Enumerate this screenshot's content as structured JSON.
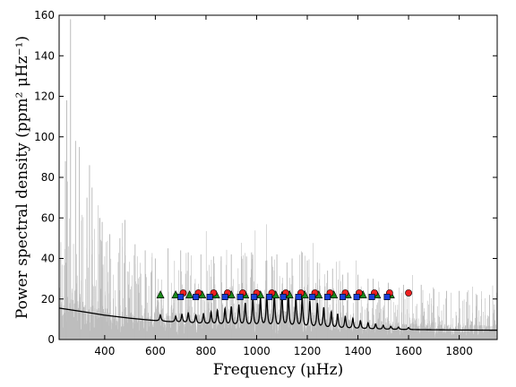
{
  "chart_data": {
    "type": "line",
    "xlabel": "Frequency (μHz)",
    "ylabel": "Power spectral density (ppm² μHz⁻¹)",
    "xlim": [
      220,
      1950
    ],
    "ylim": [
      0,
      160
    ],
    "xticks": [
      400,
      600,
      800,
      1000,
      1200,
      1400,
      1600,
      1800
    ],
    "yticks": [
      0,
      20,
      40,
      60,
      80,
      100,
      120,
      140,
      160
    ],
    "grid": false,
    "series": [
      {
        "kind": "spectrum",
        "color": "#bdbdbd",
        "peaks": [
          [
            265,
            158
          ],
          [
            250,
            118
          ],
          [
            285,
            98
          ],
          [
            300,
            95
          ],
          [
            245,
            88
          ],
          [
            340,
            86
          ],
          [
            350,
            75
          ],
          [
            330,
            70
          ],
          [
            380,
            60
          ],
          [
            390,
            58
          ],
          [
            480,
            59
          ],
          [
            420,
            52
          ],
          [
            460,
            50
          ],
          [
            520,
            47
          ],
          [
            560,
            44
          ],
          [
            600,
            40
          ],
          [
            650,
            45
          ],
          [
            700,
            44
          ],
          [
            730,
            43
          ],
          [
            780,
            42
          ],
          [
            830,
            41
          ],
          [
            860,
            41
          ],
          [
            900,
            42
          ],
          [
            940,
            41
          ],
          [
            960,
            41
          ],
          [
            980,
            43
          ],
          [
            1040,
            39
          ],
          [
            1060,
            41
          ],
          [
            1080,
            42
          ],
          [
            1120,
            38
          ],
          [
            1140,
            40
          ],
          [
            1180,
            43
          ],
          [
            1200,
            39
          ],
          [
            1240,
            38
          ],
          [
            1280,
            34
          ],
          [
            1300,
            35
          ],
          [
            1340,
            32
          ],
          [
            1360,
            33
          ],
          [
            1400,
            32
          ],
          [
            1440,
            30
          ],
          [
            1460,
            30
          ],
          [
            1520,
            28
          ],
          [
            1580,
            27
          ],
          [
            1650,
            27
          ],
          [
            1700,
            25
          ],
          [
            1750,
            24
          ],
          [
            1800,
            24
          ],
          [
            1870,
            22
          ],
          [
            1920,
            22
          ]
        ]
      },
      {
        "kind": "model",
        "color": "#000000",
        "background": [
          [
            220,
            15.5
          ],
          [
            300,
            14.0
          ],
          [
            400,
            12.0
          ],
          [
            500,
            10.5
          ],
          [
            600,
            9.3
          ],
          [
            700,
            8.3
          ],
          [
            800,
            7.5
          ],
          [
            900,
            6.9
          ],
          [
            1000,
            6.4
          ],
          [
            1100,
            6.0
          ],
          [
            1200,
            5.7
          ],
          [
            1300,
            5.4
          ],
          [
            1400,
            5.2
          ],
          [
            1500,
            5.0
          ],
          [
            1600,
            4.9
          ],
          [
            1700,
            4.8
          ],
          [
            1800,
            4.7
          ],
          [
            1950,
            4.6
          ]
        ],
        "modes": [
          [
            620,
            3
          ],
          [
            680,
            3
          ],
          [
            705,
            4
          ],
          [
            730,
            5
          ],
          [
            760,
            4
          ],
          [
            790,
            5
          ],
          [
            820,
            6
          ],
          [
            845,
            7
          ],
          [
            875,
            8
          ],
          [
            900,
            9
          ],
          [
            930,
            10
          ],
          [
            955,
            11
          ],
          [
            985,
            13
          ],
          [
            1015,
            14
          ],
          [
            1040,
            15
          ],
          [
            1070,
            16
          ],
          [
            1100,
            17
          ],
          [
            1125,
            16
          ],
          [
            1155,
            15
          ],
          [
            1180,
            14
          ],
          [
            1210,
            13
          ],
          [
            1240,
            12
          ],
          [
            1265,
            10
          ],
          [
            1295,
            8
          ],
          [
            1320,
            7
          ],
          [
            1350,
            6
          ],
          [
            1380,
            5
          ],
          [
            1410,
            4
          ],
          [
            1440,
            3
          ],
          [
            1470,
            2.5
          ],
          [
            1500,
            2
          ],
          [
            1530,
            1.5
          ],
          [
            1560,
            1.2
          ],
          [
            1600,
            1
          ]
        ]
      },
      {
        "kind": "markers",
        "shape": "triangle",
        "color": "#1a8a1a",
        "y": 22,
        "x": [
          620,
          680,
          735,
          785,
          840,
          900,
          955,
          1015,
          1075,
          1130,
          1190,
          1245,
          1305,
          1360,
          1420,
          1475,
          1530
        ]
      },
      {
        "kind": "markers",
        "shape": "circle",
        "color": "#ee2020",
        "y": 23,
        "x": [
          710,
          770,
          830,
          885,
          945,
          1000,
          1060,
          1115,
          1175,
          1230,
          1290,
          1350,
          1405,
          1465,
          1525,
          1600
        ]
      },
      {
        "kind": "markers",
        "shape": "square",
        "color": "#1a3fd8",
        "y": 21,
        "x": [
          700,
          760,
          815,
          875,
          935,
          990,
          1050,
          1105,
          1165,
          1220,
          1280,
          1340,
          1395,
          1455,
          1515
        ]
      }
    ]
  }
}
